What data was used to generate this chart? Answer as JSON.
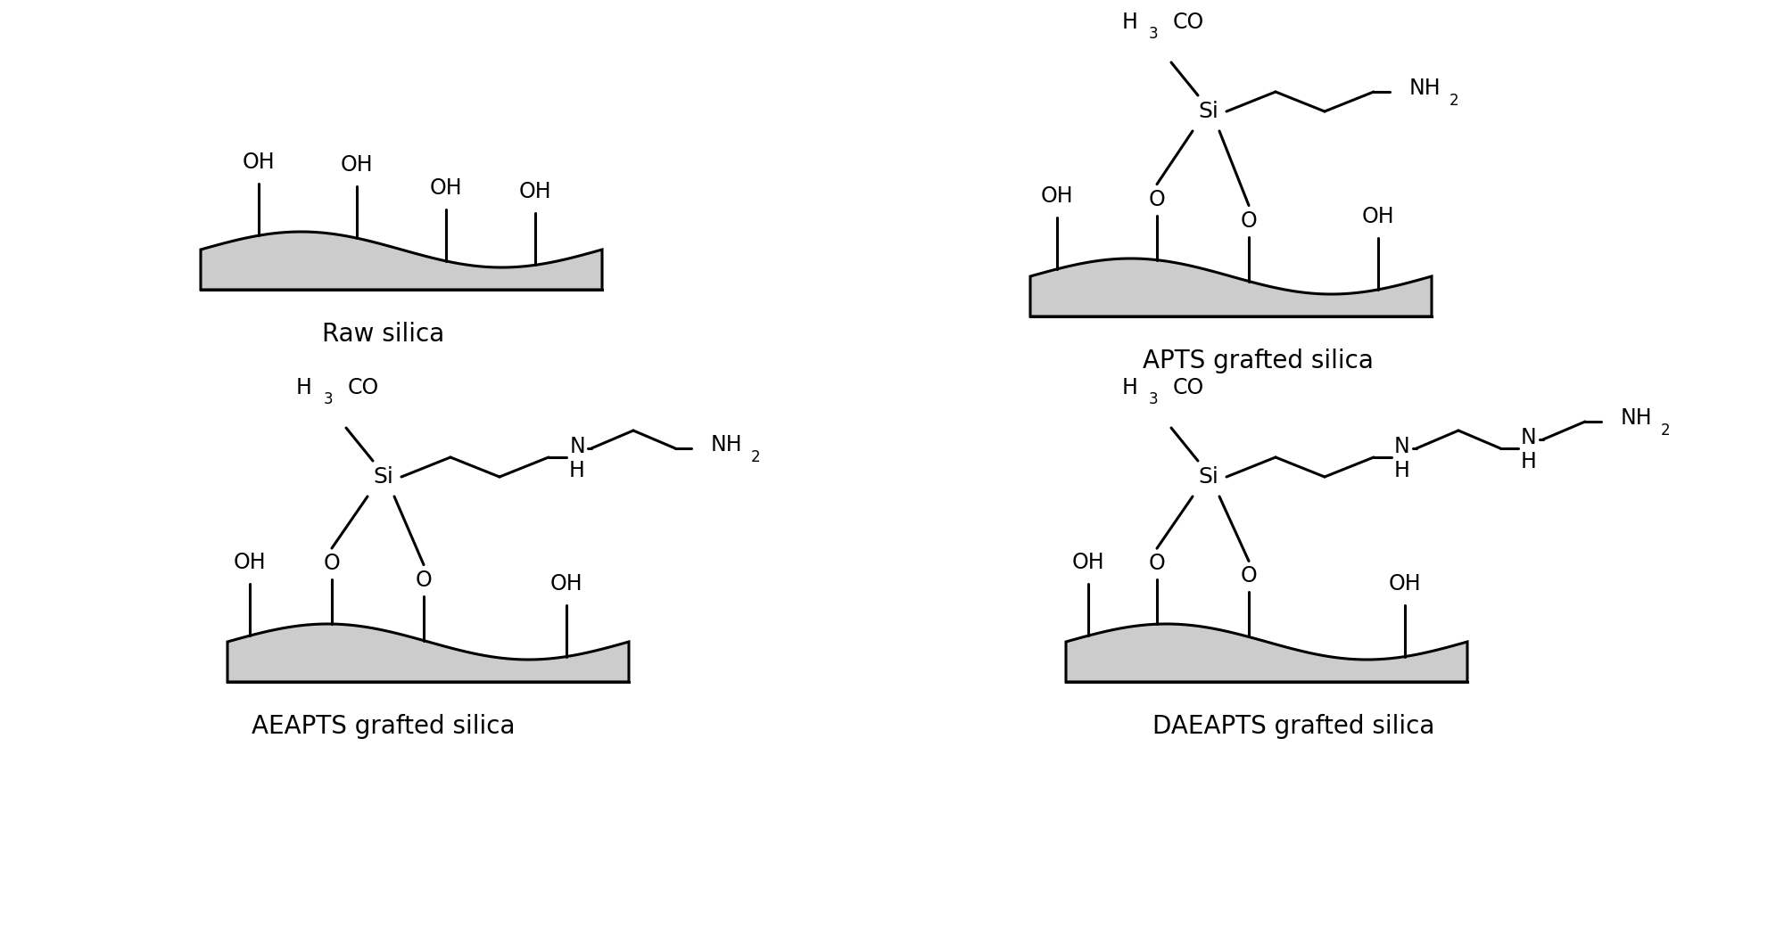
{
  "bg_color": "#ffffff",
  "silica_color": "#cccccc",
  "line_color": "#000000",
  "labels": {
    "raw": "Raw silica",
    "apts": "APTS grafted silica",
    "aeapts": "AEAPTS grafted silica",
    "daeapts": "DAEAPTS grafted silica"
  },
  "label_fontsize": 20,
  "chem_fontsize": 17,
  "chem_fontsize_small": 12
}
